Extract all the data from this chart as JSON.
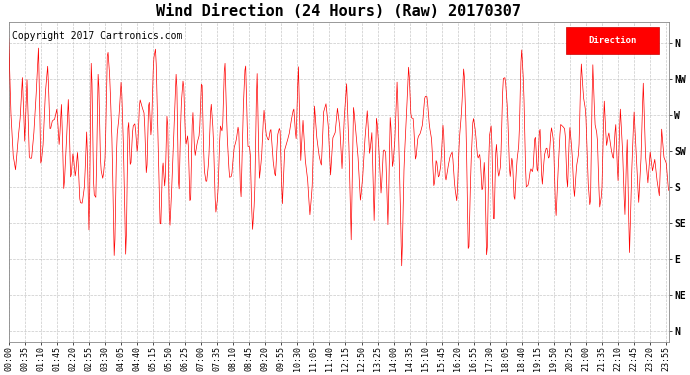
{
  "title": "Wind Direction (24 Hours) (Raw) 20170307",
  "copyright": "Copyright 2017 Cartronics.com",
  "legend_label": "Direction",
  "line_color": "#ff0000",
  "bg_color": "#ffffff",
  "grid_color": "#bbbbbb",
  "ytick_labels": [
    "N",
    "NW",
    "W",
    "SW",
    "S",
    "SE",
    "E",
    "NE",
    "N"
  ],
  "ytick_values": [
    8,
    7,
    6,
    5,
    4,
    3,
    2,
    1,
    0
  ],
  "ylim": [
    -0.3,
    8.6
  ],
  "title_fontsize": 11,
  "copyright_fontsize": 7,
  "tick_fontsize": 7,
  "figsize": [
    6.9,
    3.75
  ],
  "dpi": 100
}
